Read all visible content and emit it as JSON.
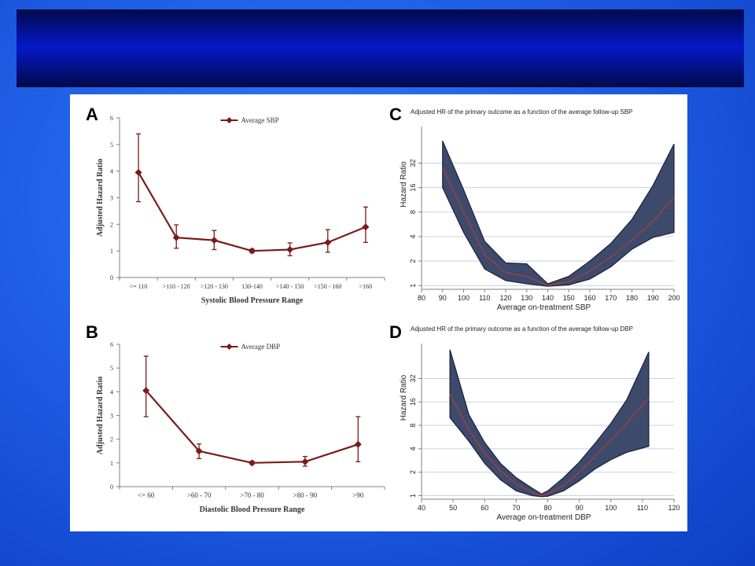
{
  "slide": {
    "title": ""
  },
  "panels": {
    "A": {
      "letter": "A"
    },
    "B": {
      "letter": "B"
    },
    "C": {
      "letter": "C"
    },
    "D": {
      "letter": "D"
    }
  },
  "chart_data": [
    {
      "id": "A",
      "type": "line",
      "legend": "Average SBP",
      "legend_position": "top",
      "xlabel": "Systolic Blood Pressure Range",
      "ylabel": "Adjusted Hazard Ratio",
      "categories": [
        "<= 110",
        ">110 - 120",
        ">120 - 130",
        "130-140",
        ">140 - 150",
        ">150 - 160",
        ">160"
      ],
      "values": [
        3.95,
        1.5,
        1.4,
        1.0,
        1.05,
        1.32,
        1.9
      ],
      "ci_low": [
        2.85,
        1.1,
        1.05,
        0.93,
        0.82,
        0.95,
        1.32
      ],
      "ci_high": [
        5.4,
        1.98,
        1.77,
        1.07,
        1.3,
        1.8,
        2.65
      ],
      "ylim": [
        0,
        6
      ],
      "yticks": [
        "0",
        "1",
        "2",
        "3",
        "4",
        "5",
        "6"
      ],
      "color": "#7b1a1a"
    },
    {
      "id": "B",
      "type": "line",
      "legend": "Average DBP",
      "legend_position": "top",
      "xlabel": "Diastolic Blood Pressure Range",
      "ylabel": "Adjusted Hazard Ratio",
      "categories": [
        "<= 60",
        ">60 - 70",
        ">70 - 80",
        ">80 - 90",
        ">90"
      ],
      "values": [
        4.05,
        1.5,
        1.0,
        1.05,
        1.78
      ],
      "ci_low": [
        2.95,
        1.18,
        0.93,
        0.86,
        1.05
      ],
      "ci_high": [
        5.5,
        1.8,
        1.07,
        1.27,
        2.95
      ],
      "ylim": [
        0,
        6
      ],
      "yticks": [
        "0",
        "1",
        "2",
        "3",
        "4",
        "5",
        "6"
      ],
      "color": "#7b1a1a"
    },
    {
      "id": "C",
      "type": "area",
      "title": "Adjusted HR of the primary outcome as a function of the average follow-up SBP",
      "xlabel": "Average on-treatment SBP",
      "ylabel": "Hazard Ratio",
      "yscale": "log",
      "xlim": [
        80,
        200
      ],
      "ylim": [
        0.9,
        90
      ],
      "xticks": [
        "80",
        "90",
        "100",
        "110",
        "120",
        "130",
        "140",
        "150",
        "160",
        "170",
        "180",
        "190",
        "200"
      ],
      "yticks": [
        "1",
        "2",
        "4",
        "8",
        "16",
        "32"
      ],
      "grid": "horizontal",
      "x": [
        90,
        100,
        110,
        120,
        130,
        140,
        150,
        160,
        170,
        180,
        190,
        200
      ],
      "estimate": [
        28,
        8,
        2.4,
        1.45,
        1.3,
        1.0,
        1.12,
        1.5,
        2.25,
        3.6,
        6.2,
        12
      ],
      "lower": [
        16,
        4.5,
        1.6,
        1.15,
        1.05,
        0.98,
        1.02,
        1.2,
        1.7,
        2.8,
        3.9,
        4.5
      ],
      "upper": [
        60,
        15,
        3.5,
        1.9,
        1.85,
        1.05,
        1.3,
        2.0,
        3.3,
        6.5,
        17,
        55
      ]
    },
    {
      "id": "D",
      "type": "area",
      "title": "Adjusted HR of the primary outcome as a function of the average follow-up DBP",
      "xlabel": "Average on-treatment DBP",
      "ylabel": "Hazard Ratio",
      "yscale": "log",
      "xlim": [
        40,
        120
      ],
      "ylim": [
        0.9,
        90
      ],
      "xticks": [
        "40",
        "50",
        "60",
        "70",
        "80",
        "90",
        "100",
        "110",
        "120"
      ],
      "yticks": [
        "1",
        "2",
        "4",
        "8",
        "16",
        "32"
      ],
      "grid": "horizontal",
      "x": [
        49,
        55,
        60,
        65,
        70,
        75,
        78,
        80,
        85,
        90,
        95,
        100,
        105,
        112
      ],
      "estimate": [
        20,
        7,
        3.5,
        2.1,
        1.4,
        1.1,
        1.0,
        1.05,
        1.35,
        2.0,
        3.2,
        5.2,
        8.5,
        18
      ],
      "lower": [
        10,
        5,
        2.6,
        1.6,
        1.15,
        1.0,
        0.97,
        0.98,
        1.15,
        1.55,
        2.2,
        2.9,
        3.6,
        4.3
      ],
      "upper": [
        75,
        11,
        4.8,
        2.6,
        1.7,
        1.25,
        1.05,
        1.15,
        1.7,
        2.7,
        4.7,
        8.5,
        17,
        70
      ]
    }
  ]
}
